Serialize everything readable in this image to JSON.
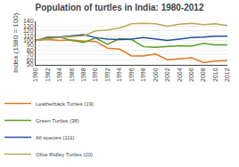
{
  "chart_data": {
    "type": "line",
    "title": "Population of turtles in India: 1980-2012",
    "ylabel": "Index (1980 = 100)",
    "x": [
      1980,
      1982,
      1984,
      1986,
      1988,
      1990,
      1992,
      1994,
      1996,
      1998,
      2000,
      2002,
      2004,
      2006,
      2008,
      2010,
      2012
    ],
    "series": [
      {
        "name": "Leatherback Turtles (19)",
        "color": "#e07820",
        "values": [
          100,
          102,
          100,
          101,
          99,
          98,
          84,
          82,
          68,
          68,
          72,
          60,
          62,
          64,
          54,
          57,
          58
        ]
      },
      {
        "name": "Green Turtles (38)",
        "color": "#5a9e20",
        "values": [
          100,
          107,
          107,
          100,
          96,
          105,
          92,
          104,
          102,
          87,
          86,
          88,
          89,
          88,
          94,
          91,
          91
        ]
      },
      {
        "name": "All species (111)",
        "color": "#2050a0",
        "values": [
          100,
          105,
          107,
          110,
          112,
          106,
          103,
          102,
          103,
          106,
          103,
          100,
          103,
          106,
          107,
          109,
          109
        ]
      },
      {
        "name": "Olive Ridley Turtles (20)",
        "color": "#b8a855",
        "values": [
          100,
          104,
          106,
          108,
          110,
          120,
          122,
          126,
          135,
          136,
          135,
          130,
          134,
          136,
          133,
          135,
          131
        ]
      }
    ],
    "xlim": [
      1980,
      2012
    ],
    "xticks": [
      1980,
      1982,
      1984,
      1986,
      1988,
      1990,
      1992,
      1994,
      1996,
      1998,
      2000,
      2002,
      2004,
      2006,
      2008,
      2010,
      2012
    ],
    "ylim": [
      50,
      140
    ],
    "yticks": [
      50,
      60,
      70,
      80,
      90,
      100,
      110,
      120,
      130,
      140
    ],
    "grid": true,
    "legend": "bottom"
  }
}
